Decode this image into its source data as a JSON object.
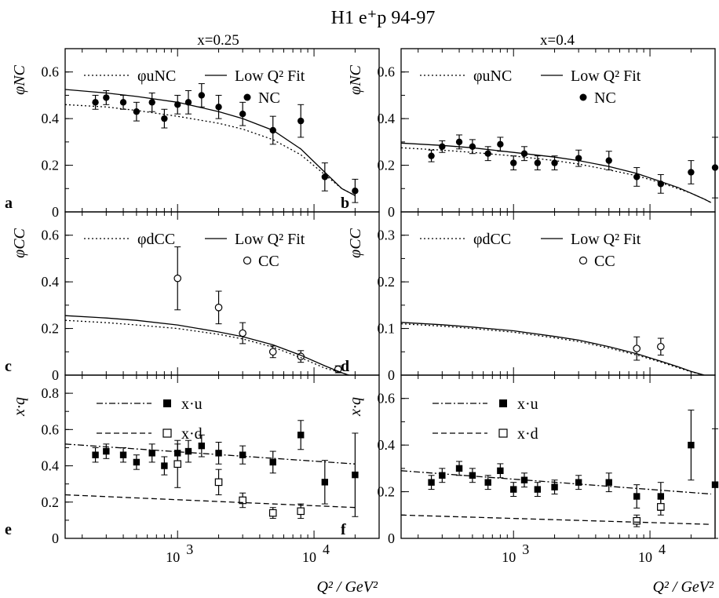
{
  "figure": {
    "title": "H1 e⁺p 94-97",
    "column_titles": [
      "x=0.25",
      "x=0.4"
    ],
    "xlabel": "Q² / GeV²"
  },
  "chart_data": [
    {
      "id": "a",
      "type": "scatter",
      "panel_letter": "a",
      "ylabel": "φNC",
      "ylim": [
        0,
        0.7
      ],
      "yticks": [
        0,
        0.2,
        0.4,
        0.6
      ],
      "ytick_labels": [
        "0",
        "0.2",
        "0.4",
        "0.6"
      ],
      "xscale": "log",
      "xlim": [
        150,
        30000
      ],
      "legend_placement": "top-right",
      "legend": [
        {
          "label": "φuNC",
          "style": "dotted"
        },
        {
          "label": "Low Q² Fit",
          "style": "solid"
        },
        {
          "label": "NC",
          "style": "filled-circle"
        }
      ],
      "series": [
        {
          "name": "NC",
          "marker": "filled-circle",
          "x": [
            250,
            300,
            400,
            500,
            650,
            800,
            1000,
            1200,
            1500,
            2000,
            3000,
            5000,
            8000,
            12000,
            20000
          ],
          "y": [
            0.47,
            0.49,
            0.47,
            0.43,
            0.47,
            0.4,
            0.46,
            0.47,
            0.5,
            0.45,
            0.42,
            0.35,
            0.39,
            0.15,
            0.09
          ],
          "err": [
            0.03,
            0.03,
            0.03,
            0.04,
            0.04,
            0.04,
            0.04,
            0.05,
            0.05,
            0.05,
            0.05,
            0.06,
            0.07,
            0.06,
            0.05
          ]
        },
        {
          "name": "φuNC",
          "line": "dotted",
          "x": [
            150,
            300,
            500,
            1000,
            2000,
            3000,
            5000,
            8000,
            12000,
            16000,
            20000
          ],
          "y": [
            0.46,
            0.45,
            0.435,
            0.41,
            0.38,
            0.355,
            0.31,
            0.245,
            0.16,
            0.1,
            0.07
          ]
        },
        {
          "name": "Low Q² Fit",
          "line": "solid",
          "x": [
            150,
            300,
            500,
            1000,
            2000,
            3000,
            5000,
            8000,
            12000,
            16000,
            20000
          ],
          "y": [
            0.525,
            0.51,
            0.495,
            0.47,
            0.43,
            0.4,
            0.35,
            0.27,
            0.17,
            0.1,
            0.07
          ]
        }
      ]
    },
    {
      "id": "b",
      "type": "scatter",
      "panel_letter": "b",
      "ylabel": "φNC",
      "ylim": [
        0,
        0.7
      ],
      "yticks": [
        0,
        0.2,
        0.4,
        0.6
      ],
      "ytick_labels": [
        "0",
        "0.2",
        "0.4",
        "0.6"
      ],
      "xscale": "log",
      "xlim": [
        150,
        30000
      ],
      "legend_placement": "top-right",
      "legend": [
        {
          "label": "φuNC",
          "style": "dotted"
        },
        {
          "label": "Low Q² Fit",
          "style": "solid"
        },
        {
          "label": "NC",
          "style": "filled-circle"
        }
      ],
      "series": [
        {
          "name": "NC",
          "marker": "filled-circle",
          "x": [
            250,
            300,
            400,
            500,
            650,
            800,
            1000,
            1200,
            1500,
            2000,
            3000,
            5000,
            8000,
            12000,
            20000,
            30000
          ],
          "y": [
            0.24,
            0.28,
            0.3,
            0.28,
            0.25,
            0.29,
            0.21,
            0.25,
            0.21,
            0.21,
            0.23,
            0.22,
            0.15,
            0.12,
            0.17,
            0.19
          ],
          "err": [
            0.025,
            0.025,
            0.03,
            0.03,
            0.03,
            0.03,
            0.03,
            0.03,
            0.03,
            0.03,
            0.035,
            0.04,
            0.04,
            0.04,
            0.05,
            0.13
          ]
        },
        {
          "name": "φuNC",
          "line": "dotted",
          "x": [
            150,
            300,
            500,
            1000,
            2000,
            3000,
            5000,
            8000,
            12000,
            16000,
            20000,
            25000,
            28000
          ],
          "y": [
            0.275,
            0.265,
            0.255,
            0.24,
            0.22,
            0.205,
            0.18,
            0.155,
            0.125,
            0.1,
            0.08,
            0.055,
            0.04
          ]
        },
        {
          "name": "Low Q² Fit",
          "line": "solid",
          "x": [
            150,
            300,
            500,
            1000,
            2000,
            3000,
            5000,
            8000,
            12000,
            16000,
            20000,
            25000,
            28000
          ],
          "y": [
            0.295,
            0.285,
            0.275,
            0.255,
            0.235,
            0.22,
            0.195,
            0.165,
            0.13,
            0.105,
            0.08,
            0.055,
            0.04
          ]
        }
      ]
    },
    {
      "id": "c",
      "type": "scatter",
      "panel_letter": "c",
      "ylabel": "φCC",
      "ylim": [
        0,
        0.7
      ],
      "yticks": [
        0,
        0.2,
        0.4,
        0.6
      ],
      "ytick_labels": [
        "0",
        "0.2",
        "0.4",
        "0.6"
      ],
      "xscale": "log",
      "xlim": [
        150,
        30000
      ],
      "legend_placement": "top-right",
      "legend": [
        {
          "label": "φdCC",
          "style": "dotted"
        },
        {
          "label": "Low Q² Fit",
          "style": "solid"
        },
        {
          "label": "CC",
          "style": "open-circle"
        }
      ],
      "series": [
        {
          "name": "CC",
          "marker": "open-circle",
          "x": [
            1000,
            2000,
            3000,
            5000,
            8000,
            15000
          ],
          "y": [
            0.415,
            0.29,
            0.18,
            0.1,
            0.08,
            0.025
          ],
          "err": [
            0.135,
            0.07,
            0.045,
            0.025,
            0.025,
            0.015
          ]
        },
        {
          "name": "φdCC",
          "line": "dotted",
          "x": [
            150,
            300,
            500,
            1000,
            2000,
            3000,
            5000,
            8000,
            12000,
            16000,
            18000
          ],
          "y": [
            0.235,
            0.225,
            0.215,
            0.2,
            0.175,
            0.155,
            0.12,
            0.075,
            0.03,
            0.01,
            0.0
          ]
        },
        {
          "name": "Low Q² Fit",
          "line": "solid",
          "x": [
            150,
            300,
            500,
            1000,
            2000,
            3000,
            5000,
            8000,
            12000,
            16000,
            18000
          ],
          "y": [
            0.255,
            0.245,
            0.235,
            0.215,
            0.185,
            0.165,
            0.13,
            0.085,
            0.04,
            0.01,
            0.0
          ]
        }
      ]
    },
    {
      "id": "d",
      "type": "scatter",
      "panel_letter": "d",
      "ylabel": "φCC",
      "ylim": [
        0,
        0.35
      ],
      "yticks": [
        0,
        0.1,
        0.2,
        0.3
      ],
      "ytick_labels": [
        "0",
        "0.1",
        "0.2",
        "0.3"
      ],
      "xscale": "log",
      "xlim": [
        150,
        30000
      ],
      "legend_placement": "top-right",
      "legend": [
        {
          "label": "φdCC",
          "style": "dotted"
        },
        {
          "label": "Low Q² Fit",
          "style": "solid"
        },
        {
          "label": "CC",
          "style": "open-circle"
        }
      ],
      "series": [
        {
          "name": "CC",
          "marker": "open-circle",
          "x": [
            8000,
            12000
          ],
          "y": [
            0.057,
            0.061
          ],
          "err": [
            0.025,
            0.018
          ]
        },
        {
          "name": "φdCC",
          "line": "dotted",
          "x": [
            150,
            300,
            500,
            1000,
            2000,
            3000,
            5000,
            8000,
            12000,
            16000,
            20000,
            25000
          ],
          "y": [
            0.11,
            0.105,
            0.1,
            0.092,
            0.08,
            0.072,
            0.058,
            0.043,
            0.028,
            0.016,
            0.007,
            0.0
          ]
        },
        {
          "name": "Low Q² Fit",
          "line": "solid",
          "x": [
            150,
            300,
            500,
            1000,
            2000,
            3000,
            5000,
            8000,
            12000,
            16000,
            20000,
            25000
          ],
          "y": [
            0.113,
            0.108,
            0.103,
            0.095,
            0.083,
            0.075,
            0.061,
            0.046,
            0.03,
            0.018,
            0.008,
            0.0
          ]
        }
      ]
    },
    {
      "id": "e",
      "type": "scatter",
      "panel_letter": "e",
      "ylabel": "x·q",
      "ylim": [
        0,
        0.9
      ],
      "yticks": [
        0,
        0.2,
        0.4,
        0.6,
        0.8
      ],
      "ytick_labels": [
        "0",
        "0.2",
        "0.4",
        "0.6",
        "0.8"
      ],
      "xscale": "log",
      "xlim": [
        150,
        30000
      ],
      "xticks": [
        1000,
        10000
      ],
      "legend_placement": "top-left",
      "legend": [
        {
          "label": "x·u",
          "style": "dash-dot"
        },
        {
          "label": "x·d",
          "style": "dashed"
        }
      ],
      "series": [
        {
          "name": "x·u",
          "marker": "filled-square",
          "x": [
            250,
            300,
            400,
            500,
            650,
            800,
            1000,
            1200,
            1500,
            2000,
            3000,
            5000,
            8000,
            12000,
            20000
          ],
          "y": [
            0.46,
            0.48,
            0.46,
            0.42,
            0.47,
            0.4,
            0.47,
            0.48,
            0.51,
            0.47,
            0.46,
            0.42,
            0.57,
            0.31,
            0.35
          ],
          "err": [
            0.04,
            0.04,
            0.04,
            0.04,
            0.05,
            0.05,
            0.05,
            0.06,
            0.06,
            0.06,
            0.05,
            0.06,
            0.08,
            0.12,
            0.23
          ]
        },
        {
          "name": "x·d",
          "marker": "open-square",
          "x": [
            1000,
            2000,
            3000,
            5000,
            8000
          ],
          "y": [
            0.41,
            0.31,
            0.21,
            0.14,
            0.15
          ],
          "err": [
            0.13,
            0.07,
            0.04,
            0.03,
            0.04
          ]
        },
        {
          "name": "x·u fit",
          "line": "dash-dot",
          "x": [
            150,
            20000
          ],
          "y": [
            0.52,
            0.41
          ]
        },
        {
          "name": "x·d fit",
          "line": "dashed",
          "x": [
            150,
            20000
          ],
          "y": [
            0.24,
            0.17
          ]
        }
      ]
    },
    {
      "id": "f",
      "type": "scatter",
      "panel_letter": "f",
      "ylabel": "x·q",
      "ylim": [
        0,
        0.7
      ],
      "yticks": [
        0,
        0.2,
        0.4,
        0.6
      ],
      "ytick_labels": [
        "0",
        "0.2",
        "0.4",
        "0.6"
      ],
      "xscale": "log",
      "xlim": [
        150,
        30000
      ],
      "xticks": [
        1000,
        10000
      ],
      "legend_placement": "top-left",
      "legend": [
        {
          "label": "x·u",
          "style": "dash-dot"
        },
        {
          "label": "x·d",
          "style": "dashed"
        }
      ],
      "series": [
        {
          "name": "x·u",
          "marker": "filled-square",
          "x": [
            250,
            300,
            400,
            500,
            650,
            800,
            1000,
            1200,
            1500,
            2000,
            3000,
            5000,
            8000,
            12000,
            20000,
            30000
          ],
          "y": [
            0.24,
            0.27,
            0.3,
            0.27,
            0.24,
            0.29,
            0.21,
            0.25,
            0.21,
            0.22,
            0.24,
            0.24,
            0.18,
            0.18,
            0.4,
            0.23
          ],
          "err": [
            0.03,
            0.03,
            0.03,
            0.03,
            0.03,
            0.03,
            0.03,
            0.03,
            0.03,
            0.03,
            0.03,
            0.04,
            0.05,
            0.06,
            0.15,
            0.24
          ]
        },
        {
          "name": "x·d",
          "marker": "open-square",
          "x": [
            8000,
            12000
          ],
          "y": [
            0.075,
            0.135
          ],
          "err": [
            0.025,
            0.035
          ]
        },
        {
          "name": "x·u fit",
          "line": "dash-dot",
          "x": [
            150,
            28000
          ],
          "y": [
            0.29,
            0.19
          ]
        },
        {
          "name": "x·d fit",
          "line": "dashed",
          "x": [
            150,
            28000
          ],
          "y": [
            0.1,
            0.06
          ]
        }
      ]
    }
  ]
}
